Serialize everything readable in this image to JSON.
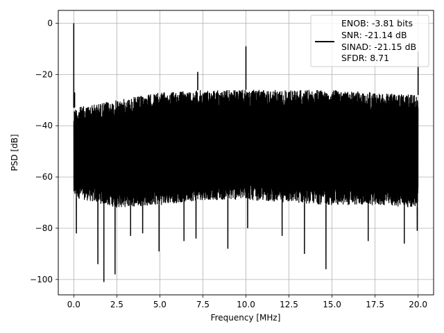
{
  "chart_data": {
    "type": "line",
    "title": "",
    "xlabel": "Frequency [MHz]",
    "ylabel": "PSD [dB]",
    "xlim": [
      -0.9,
      20.9
    ],
    "ylim": [
      -106,
      5
    ],
    "xticks": [
      0.0,
      2.5,
      5.0,
      7.5,
      10.0,
      12.5,
      15.0,
      17.5,
      20.0
    ],
    "xtick_labels": [
      "0.0",
      "2.5",
      "5.0",
      "7.5",
      "10.0",
      "12.5",
      "15.0",
      "17.5",
      "20.0"
    ],
    "yticks": [
      0,
      -20,
      -40,
      -60,
      -80,
      -100
    ],
    "ytick_labels": [
      "0",
      "−20",
      "−40",
      "−60",
      "−80",
      "−100"
    ],
    "grid": true,
    "legend_position": "top-right",
    "legend_lines": [
      "ENOB: -3.81 bits",
      "SNR: -21.14 dB",
      "SINAD: -21.15 dB",
      "SFDR: 8.71"
    ],
    "series_color": "#000000",
    "noise_floor": {
      "x_start": 0.0,
      "x_end": 20.0,
      "upper_envelope": [
        [
          0.0,
          -33
        ],
        [
          2.5,
          -30
        ],
        [
          5.0,
          -27
        ],
        [
          7.5,
          -26
        ],
        [
          10.0,
          -26
        ],
        [
          12.5,
          -26
        ],
        [
          15.0,
          -26
        ],
        [
          17.5,
          -27
        ],
        [
          20.0,
          -28
        ]
      ],
      "lower_envelope": [
        [
          0.0,
          -68
        ],
        [
          2.5,
          -72
        ],
        [
          5.0,
          -71
        ],
        [
          7.5,
          -69
        ],
        [
          10.0,
          -69
        ],
        [
          12.5,
          -70
        ],
        [
          15.0,
          -71
        ],
        [
          17.5,
          -71
        ],
        [
          20.0,
          -72
        ]
      ]
    },
    "peaks": [
      {
        "x": 0.0,
        "y": 0
      },
      {
        "x": 0.05,
        "y": -27
      },
      {
        "x": 7.2,
        "y": -19
      },
      {
        "x": 10.0,
        "y": -9
      },
      {
        "x": 20.0,
        "y": -11
      }
    ],
    "dips": [
      {
        "x": 0.15,
        "y": -82
      },
      {
        "x": 1.4,
        "y": -94
      },
      {
        "x": 1.75,
        "y": -101
      },
      {
        "x": 2.4,
        "y": -98
      },
      {
        "x": 3.3,
        "y": -83
      },
      {
        "x": 4.0,
        "y": -82
      },
      {
        "x": 4.95,
        "y": -89
      },
      {
        "x": 6.4,
        "y": -85
      },
      {
        "x": 7.1,
        "y": -84
      },
      {
        "x": 8.95,
        "y": -88
      },
      {
        "x": 10.1,
        "y": -80
      },
      {
        "x": 12.1,
        "y": -83
      },
      {
        "x": 13.4,
        "y": -90
      },
      {
        "x": 14.65,
        "y": -96
      },
      {
        "x": 17.1,
        "y": -85
      },
      {
        "x": 19.2,
        "y": -86
      },
      {
        "x": 19.95,
        "y": -81
      }
    ]
  }
}
